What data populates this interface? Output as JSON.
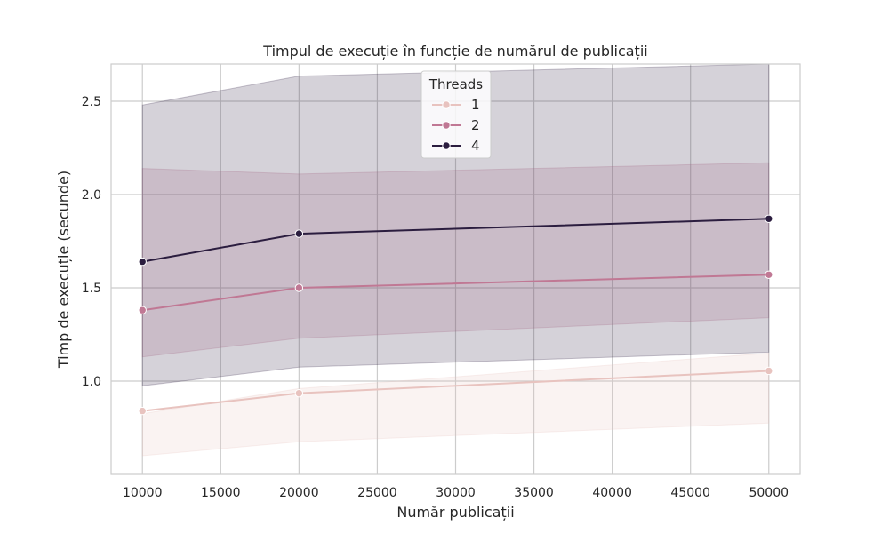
{
  "chart_data": {
    "type": "line",
    "title": "Timpul de execuție în funcție de numărul de publicații",
    "xlabel": "Număr publicații",
    "ylabel": "Timp de execuție (secunde)",
    "xlim": [
      8000,
      52000
    ],
    "ylim": [
      0.5,
      2.7
    ],
    "xticks": [
      10000,
      15000,
      20000,
      25000,
      30000,
      35000,
      40000,
      45000,
      50000
    ],
    "yticks": [
      1.0,
      1.5,
      2.0,
      2.5
    ],
    "ytick_labels": [
      "1.0",
      "1.5",
      "2.0",
      "2.5"
    ],
    "grid": true,
    "legend": {
      "title": "Threads",
      "placement": "top-center"
    },
    "x": [
      10000,
      20000,
      50000
    ],
    "series": [
      {
        "name": "1",
        "color": "#e8c3bf",
        "values": [
          0.84,
          0.935,
          1.055
        ],
        "band_lower": [
          0.6,
          0.675,
          0.775
        ],
        "band_upper": [
          0.825,
          0.96,
          1.15
        ]
      },
      {
        "name": "2",
        "color": "#c07894",
        "values": [
          1.38,
          1.5,
          1.57
        ],
        "band_lower": [
          1.13,
          1.23,
          1.34
        ],
        "band_upper": [
          2.14,
          2.11,
          2.17
        ]
      },
      {
        "name": "4",
        "color": "#2b1d3f",
        "values": [
          1.64,
          1.79,
          1.87
        ],
        "band_lower": [
          0.975,
          1.075,
          1.155
        ],
        "band_upper": [
          2.48,
          2.635,
          2.7
        ]
      }
    ]
  }
}
